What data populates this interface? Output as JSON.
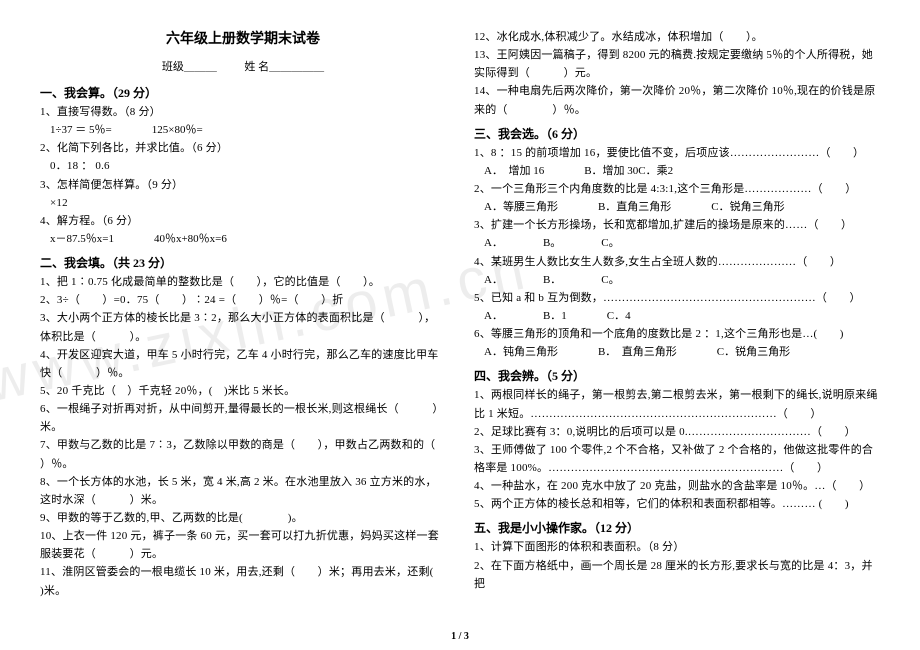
{
  "title": "六年级上册数学期末试卷",
  "meta": {
    "class_label": "班级＿＿＿",
    "name_label": "姓 名＿＿＿＿＿"
  },
  "watermark": "www.zixin.com.cn",
  "page_num": "1 / 3",
  "left": {
    "sec1": {
      "head": "一、我会算。（29 分）",
      "q1": "1、直接写得数。（8 分）",
      "q1a": "1÷37 ＝ 5％=",
      "q1b": "125×80％=",
      "q2": "2、化简下列各比，并求比值。（6 分）",
      "q2a": "0．18 ： 0.6",
      "q3": "3、怎样简便怎样算。（9 分）",
      "q3a": "×12",
      "q4": "4、解方程。（6 分）",
      "q4a": "x－87.5％x=1",
      "q4b": "40％x+80％x=6"
    },
    "sec2": {
      "head": "二、我会填。（共 23 分）",
      "l1": "1、把 1∶0.75 化成最简单的整数比是（　　），它的比值是（　　）。",
      "l2": "2、3÷（　　）=0．75（　　）∶24 =（　　）％=（　　）折",
      "l3": "3、大小两个正方体的棱长比是 3∶2，那么大小正方体的表面积比是（　　　），体积比是（　　　）。",
      "l4": "4、开发区迎宾大道，甲车 5 小时行完，乙车 4 小时行完，那么乙车的速度比甲车快（　　　）％。",
      "l5": "5、20 千克比（　）千克轻 20％，(　)米比 5 米长。",
      "l6": "6、一根绳子对折再对折，从中间剪开,量得最长的一根长米,则这根绳长（　　　）米。",
      "l7": "7、甲数与乙数的比是 7∶3，乙数除以甲数的商是（　　），甲数占乙两数和的（　　）％。",
      "l8": "8、一个长方体的水池，长 5 米，宽 4 米,高 2 米。在水池里放入 36 立方米的水，这时水深（　　　）米。",
      "l9": "9、甲数的等于乙数的,甲、乙两数的比是(　　　　)。",
      "l10": "10、上衣一件 120 元，裤子一条 60 元，买一套可以打九折优惠，妈妈买这样一套服装要花（　　　）元。",
      "l11": "11、淮阴区管委会的一根电缆长 10 米，用去,还剩（　　）米；再用去米，还剩(　　　)米。"
    }
  },
  "right": {
    "l12": "12、冰化成水,体积减少了。水结成冰，体积增加（　　）。",
    "l13": "13、王阿姨因一篇稿子，得到 8200 元的稿费.按规定要缴纳 5％的个人所得税，她实际得到（　　　）元。",
    "l14": "14、一种电扇先后两次降价，第一次降价 20％，第二次降价 10％,现在的价钱是原来的（　　　　）％。",
    "sec3": {
      "head": "三、我会选。（6 分）",
      "q1": "1、8 ：15 的前项增加 16，要使比值不变，后项应该……………………（　　）",
      "q1opt": {
        "a": "A．　增加 16",
        "b": "B．增加 30C．乘2"
      },
      "q2": "2、一个三角形三个内角度数的比是 4:3:1,这个三角形是………………（　　）",
      "q2opt": {
        "a": "A．等腰三角形",
        "b": "B．直角三角形",
        "c": "C．锐角三角形"
      },
      "q3": "3、扩建一个长方形操场，长和宽都增加,扩建后的操场是原来的……（　　）",
      "q3opt": {
        "a": "A．",
        "b": "B。",
        "c": "C。"
      },
      "q4": "4、某班男生人数比女生人数多,女生占全班人数的…………………（　　）",
      "q4opt": {
        "a": "A．",
        "b": "B．",
        "c": "C。"
      },
      "q5": "5、已知 a 和 b 互为倒数，…………………………………………………（　　）",
      "q5opt": {
        "a": "A．",
        "b": "B．1",
        "c": "C．4"
      },
      "q6": "6、等腰三角形的顶角和一个底角的度数比是 2 ：1,这个三角形也是…(　　)",
      "q6opt": {
        "a": "A．钝角三角形",
        "b": "B．　直角三角形",
        "c": "C．锐角三角形"
      }
    },
    "sec4": {
      "head": "四、我会辨。（5 分）",
      "l1": "1、两根同样长的绳子，第一根剪去,第二根剪去米，第一根剩下的绳长,说明原来绳比 1 米短。…………………………………………………………（　　）",
      "l2": "2、足球比赛有 3：0,说明比的后项可以是 0.……………………………（　　）",
      "l3": "3、王师傅做了 100 个零件,2 个不合格，又补做了 2 个合格的，他做这批零件的合格率是 100%。………………………………………………………（　　）",
      "l4": "4、一种盐水，在 200 克水中放了 20 克盐，则盐水的含盐率是 10％。…（　　）",
      "l5": "5、两个正方体的棱长总和相等，它们的体积和表面积都相等。……… (　　)"
    },
    "sec5": {
      "head": "五、我是小小操作家。（12 分）",
      "l1": "1、计算下面图形的体积和表面积。（8 分）",
      "l2": "2、在下面方格纸中，画一个周长是 28 厘米的长方形,要求长与宽的比是 4：3，并把"
    }
  }
}
